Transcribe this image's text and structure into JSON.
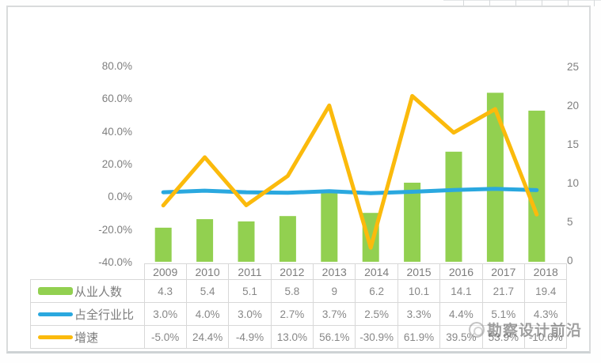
{
  "watermark": {
    "text": "勘察设计前沿",
    "logo": "camera-circle-logo"
  },
  "chart_data": {
    "type": "combo-bar-line",
    "categories": [
      "2009",
      "2010",
      "2011",
      "2012",
      "2013",
      "2014",
      "2015",
      "2016",
      "2017",
      "2018"
    ],
    "series": [
      {
        "name": "从业人数",
        "type": "bar",
        "axis": "right",
        "color": "#92D050",
        "values": [
          4.3,
          5.4,
          5.1,
          5.8,
          9,
          6.2,
          10.1,
          14.1,
          21.7,
          19.4
        ],
        "labels": [
          "4.3",
          "5.4",
          "5.1",
          "5.8",
          "9",
          "6.2",
          "10.1",
          "14.1",
          "21.7",
          "19.4"
        ]
      },
      {
        "name": "占全行业比",
        "type": "line",
        "axis": "left",
        "color": "#2AA8DF",
        "values": [
          3.0,
          4.0,
          3.0,
          2.7,
          3.7,
          2.5,
          3.3,
          4.4,
          5.1,
          4.3
        ],
        "labels": [
          "3.0%",
          "4.0%",
          "3.0%",
          "2.7%",
          "3.7%",
          "2.5%",
          "3.3%",
          "4.4%",
          "5.1%",
          "4.3%"
        ]
      },
      {
        "name": "增速",
        "type": "line",
        "axis": "left",
        "color": "#FBBA0C",
        "values": [
          -5.0,
          24.4,
          -4.9,
          13.0,
          56.1,
          -30.9,
          61.9,
          39.5,
          53.9,
          -10.6
        ],
        "labels": [
          "-5.0%",
          "24.4%",
          "-4.9%",
          "13.0%",
          "56.1%",
          "-30.9%",
          "61.9%",
          "39.5%",
          "53.9%",
          "-10.6%"
        ]
      }
    ],
    "left_axis": {
      "min": -40,
      "max": 80,
      "ticks": [
        "80.0%",
        "60.0%",
        "40.0%",
        "20.0%",
        "0.0%",
        "-20.0%",
        "-40.0%"
      ],
      "tick_values": [
        80,
        60,
        40,
        20,
        0,
        -20,
        -40
      ]
    },
    "right_axis": {
      "min": 0,
      "max": 25,
      "ticks": [
        "25",
        "20",
        "15",
        "10",
        "5",
        "0"
      ],
      "tick_values": [
        25,
        20,
        15,
        10,
        5,
        0
      ]
    },
    "gridlines": false,
    "legend_position": "table-left-column"
  }
}
